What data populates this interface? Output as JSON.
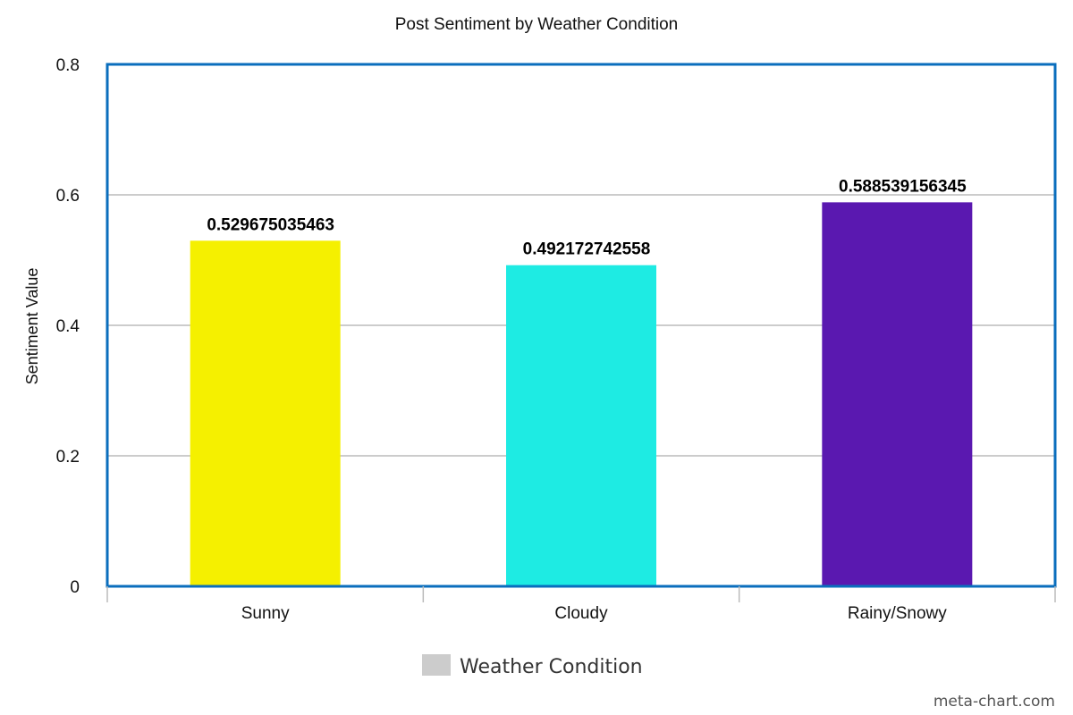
{
  "chart_data": {
    "type": "bar",
    "title": "Post Sentiment by Weather Condition",
    "xlabel": "",
    "ylabel": "Sentiment Value",
    "categories": [
      "Sunny",
      "Cloudy",
      "Rainy/Snowy"
    ],
    "series": [
      {
        "name": "Weather Condition",
        "values": [
          0.529675035463,
          0.492172742558,
          0.588539156345
        ],
        "labels": [
          "0.529675035463",
          "0.492172742558",
          "0.588539156345"
        ],
        "colors": [
          "#f5f000",
          "#1eebe3",
          "#5a18b0"
        ]
      }
    ],
    "ylim": [
      0,
      0.8
    ],
    "yticks": [
      0,
      0.2,
      0.4,
      0.6,
      0.8
    ],
    "ytick_labels": [
      "0",
      "0.2",
      "0.4",
      "0.6",
      "0.8"
    ],
    "grid": true,
    "legend": {
      "placement": "bottom-center",
      "label": "Weather Condition",
      "swatch_color": "#cccccc"
    },
    "plot_border_color": "#0a6ebd",
    "grid_color": "#bbbbbb"
  },
  "watermark": "meta-chart.com"
}
